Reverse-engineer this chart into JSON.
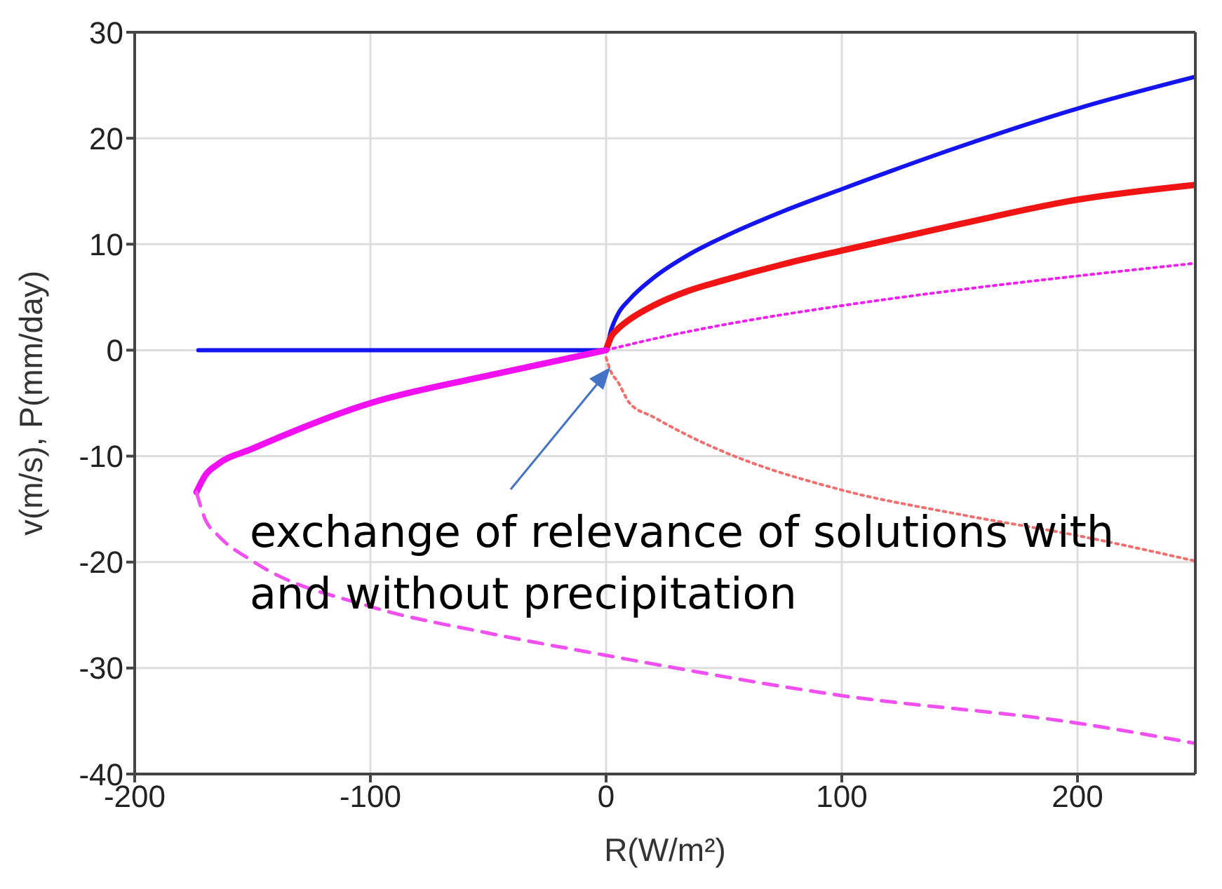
{
  "chart_data": {
    "type": "line",
    "xlabel": "R(W/m²)",
    "ylabel": "v(m/s), P(mm/day)",
    "xlim": [
      -200,
      250
    ],
    "xticks": [
      -200,
      -100,
      0,
      100,
      200
    ],
    "ylim": [
      -40,
      30
    ],
    "yticks": [
      -40,
      -30,
      -20,
      -10,
      0,
      10,
      20,
      30
    ],
    "grid": true,
    "marker": "none",
    "annotations": [
      "exchange of relevance of solutions with and without precipitation"
    ],
    "series": [
      {
        "color": "#1414f0",
        "line_style": "solid",
        "x": [
          -173,
          -100,
          0,
          2,
          5,
          10,
          20,
          35,
          50,
          75,
          100,
          150,
          200,
          250
        ],
        "values": [
          0,
          0,
          0,
          1.8,
          3.4,
          4.8,
          6.8,
          9,
          10.7,
          13.1,
          15.2,
          19.2,
          22.8,
          25.8
        ]
      },
      {
        "color": "#f01414",
        "line_style": "solid",
        "x": [
          0,
          2,
          5,
          10,
          20,
          35,
          50,
          75,
          100,
          150,
          200,
          250
        ],
        "values": [
          0,
          1.2,
          2,
          2.9,
          4.2,
          5.6,
          6.6,
          8.1,
          9.4,
          11.9,
          14.2,
          15.6
        ]
      },
      {
        "color": "#f020f0",
        "line_style": "dotted",
        "x": [
          0,
          25,
          50,
          100,
          150,
          200,
          250
        ],
        "values": [
          0,
          1.3,
          2.4,
          4.2,
          5.7,
          7,
          8.2
        ]
      },
      {
        "color": "#f010f0",
        "line_style": "solid",
        "x": [
          0,
          -25,
          -50,
          -100,
          -150,
          -165,
          -170,
          -173.8
        ],
        "values": [
          0,
          -1.2,
          -2.4,
          -5,
          -9.3,
          -10.8,
          -11.8,
          -13.4
        ]
      },
      {
        "color": "#f050f0",
        "line_style": "dashed",
        "x": [
          -173.8,
          -170,
          -165,
          -150,
          -100,
          -50,
          0,
          100,
          200,
          250
        ],
        "values": [
          -13.4,
          -16,
          -17.4,
          -19.9,
          -24.2,
          -26.7,
          -28.8,
          -32.6,
          -35.2,
          -37.1
        ]
      },
      {
        "color": "#f07070",
        "line_style": "dotted",
        "x": [
          0,
          2,
          5,
          10,
          20,
          37,
          50,
          100,
          150,
          200,
          250
        ],
        "values": [
          -0.7,
          -2,
          -3,
          -5,
          -6.3,
          -8.3,
          -9.6,
          -13.2,
          -15.5,
          -17.5,
          -19.9
        ]
      }
    ]
  }
}
